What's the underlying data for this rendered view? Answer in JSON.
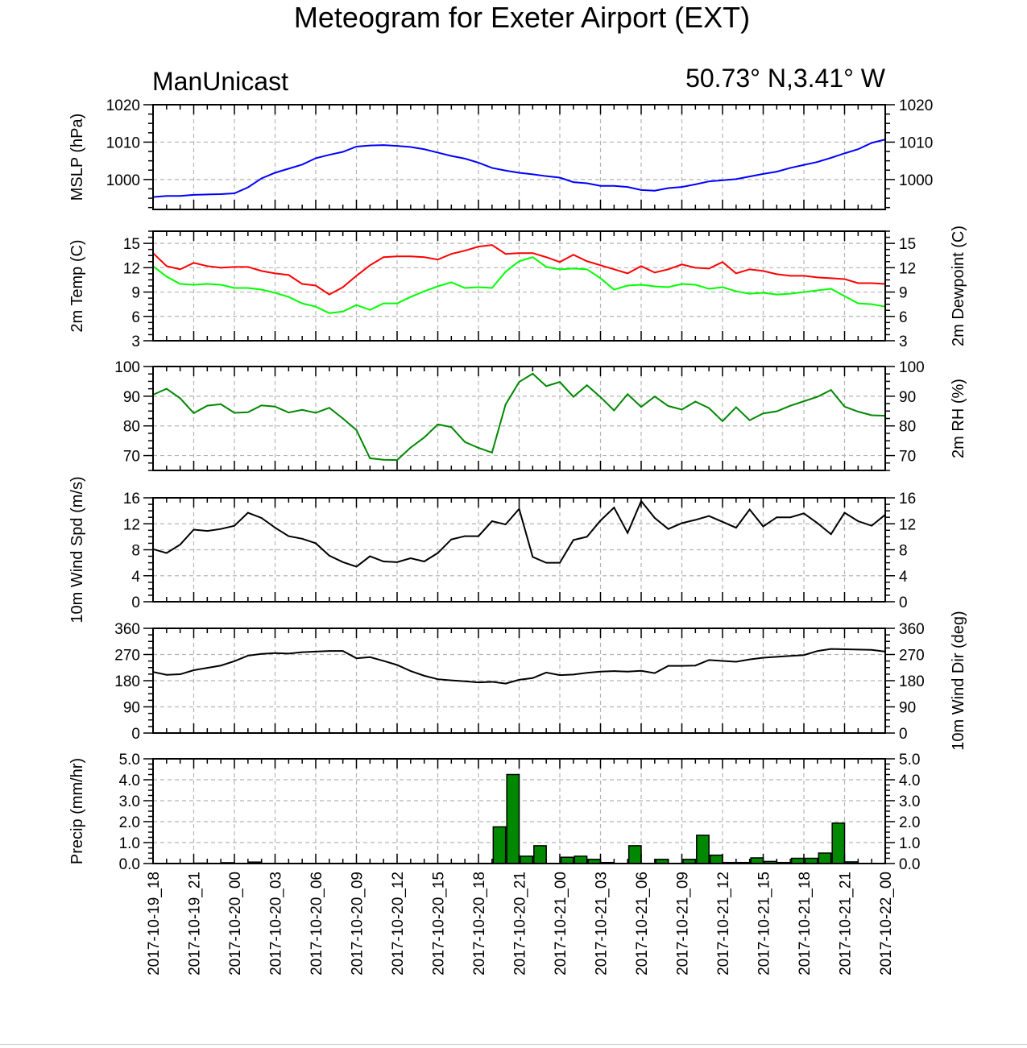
{
  "page": {
    "title": "Meteogram for Exeter Airport (EXT)",
    "subtitle_left": "ManUnicast",
    "subtitle_right": "50.73° N,3.41° W"
  },
  "chart_data": [
    {
      "id": "mslp",
      "type": "line",
      "ylabel_left": "MSLP (hPa)",
      "ylabel_right": "",
      "ylim": [
        992,
        1020
      ],
      "yticks": [
        "1000",
        "1010",
        "1020"
      ],
      "ytick_values": [
        1000,
        1010,
        1020
      ],
      "grid": true,
      "series": [
        {
          "color": "#0000ff",
          "values": [
            995.3,
            995.6,
            995.6,
            995.9,
            996.0,
            996.1,
            996.3,
            997.9,
            1000.3,
            1001.8,
            1002.9,
            1004.0,
            1005.7,
            1006.6,
            1007.4,
            1008.8,
            1009.1,
            1009.2,
            1009.0,
            1008.7,
            1008.1,
            1007.2,
            1006.3,
            1005.6,
            1004.5,
            1003.1,
            1002.4,
            1001.8,
            1001.4,
            1000.9,
            1000.5,
            999.3,
            999.0,
            998.3,
            998.3,
            998.0,
            997.2,
            997.0,
            997.7,
            998.0,
            998.7,
            999.5,
            999.8,
            1000.1,
            1000.8,
            1001.5,
            1002.1,
            1003.1,
            1003.9,
            1004.7,
            1005.8,
            1007.0,
            1008.1,
            1009.8,
            1010.7
          ]
        }
      ]
    },
    {
      "id": "temp-dewpoint",
      "type": "line",
      "ylabel_left": "2m Temp (C)",
      "ylabel_right": "2m Dewpoint (C)",
      "ylim": [
        3,
        16.5
      ],
      "yticks": [
        "3",
        "6",
        "9",
        "12",
        "15"
      ],
      "ytick_values": [
        3,
        6,
        9,
        12,
        15
      ],
      "grid": true,
      "series": [
        {
          "color": "#ff0000",
          "values": [
            13.8,
            12.2,
            11.8,
            12.6,
            12.2,
            12.0,
            12.1,
            12.1,
            11.6,
            11.3,
            11.1,
            10.0,
            9.8,
            8.7,
            9.6,
            11.0,
            12.3,
            13.3,
            13.4,
            13.4,
            13.3,
            13.0,
            13.7,
            14.1,
            14.6,
            14.8,
            13.7,
            13.8,
            13.8,
            13.3,
            12.7,
            13.6,
            12.8,
            12.3,
            11.8,
            11.3,
            12.2,
            11.4,
            11.8,
            12.4,
            12.0,
            11.9,
            12.7,
            11.3,
            11.8,
            11.6,
            11.2,
            11.0,
            11.0,
            10.8,
            10.7,
            10.6,
            10.1,
            10.1,
            10.0
          ]
        },
        {
          "color": "#00ff00",
          "values": [
            12.2,
            10.9,
            10.0,
            9.9,
            10.0,
            9.9,
            9.5,
            9.5,
            9.3,
            8.9,
            8.4,
            7.6,
            7.2,
            6.4,
            6.6,
            7.4,
            6.8,
            7.6,
            7.6,
            8.4,
            9.1,
            9.7,
            10.2,
            9.5,
            9.6,
            9.5,
            11.5,
            12.8,
            13.3,
            12.1,
            11.8,
            11.9,
            11.8,
            10.7,
            9.3,
            9.8,
            9.9,
            9.7,
            9.6,
            10.0,
            9.9,
            9.4,
            9.6,
            9.1,
            8.8,
            8.9,
            8.7,
            8.8,
            9.0,
            9.2,
            9.4,
            8.5,
            7.6,
            7.5,
            7.2
          ]
        }
      ]
    },
    {
      "id": "rh",
      "type": "line",
      "ylabel_left": "",
      "ylabel_right": "2m RH (%)",
      "ylim": [
        65,
        100
      ],
      "yticks": [
        "70",
        "80",
        "90",
        "100"
      ],
      "ytick_values": [
        70,
        80,
        90,
        100
      ],
      "grid": true,
      "series": [
        {
          "color": "#008800",
          "values": [
            90.5,
            92.5,
            89.3,
            84.3,
            86.8,
            87.3,
            84.4,
            84.6,
            86.9,
            86.5,
            84.5,
            85.4,
            84.4,
            86.1,
            82.5,
            78.6,
            69.1,
            68.6,
            68.5,
            72.7,
            76.1,
            80.5,
            79.6,
            74.6,
            72.6,
            71.0,
            87.2,
            94.8,
            97.6,
            93.4,
            94.8,
            89.8,
            93.7,
            89.7,
            85.2,
            90.7,
            86.4,
            89.9,
            86.7,
            85.5,
            88.2,
            86.0,
            81.6,
            86.3,
            81.9,
            84.2,
            84.9,
            86.8,
            88.3,
            89.8,
            92.1,
            86.5,
            84.8,
            83.6,
            83.4
          ]
        }
      ]
    },
    {
      "id": "wind-speed",
      "type": "line",
      "ylabel_left": "10m Wind Spd (m/s)",
      "ylabel_right": "",
      "ylim": [
        0,
        16
      ],
      "yticks": [
        "0",
        "4",
        "8",
        "12",
        "16"
      ],
      "ytick_values": [
        0,
        4,
        8,
        12,
        16
      ],
      "grid": true,
      "series": [
        {
          "color": "#000000",
          "values": [
            8.1,
            7.5,
            8.8,
            11.1,
            10.9,
            11.2,
            11.7,
            13.7,
            12.9,
            11.4,
            10.1,
            9.7,
            9.0,
            7.1,
            6.1,
            5.4,
            7.0,
            6.2,
            6.1,
            6.7,
            6.2,
            7.5,
            9.6,
            10.1,
            10.1,
            12.4,
            11.9,
            14.3,
            6.9,
            6.0,
            6.0,
            9.5,
            10.0,
            12.5,
            14.5,
            10.6,
            15.5,
            12.9,
            11.2,
            12.1,
            12.6,
            13.2,
            12.3,
            11.4,
            14.2,
            11.6,
            13.0,
            13.0,
            13.6,
            12.1,
            10.4,
            13.7,
            12.4,
            11.7,
            13.4
          ]
        }
      ]
    },
    {
      "id": "wind-direction",
      "type": "line",
      "ylabel_left": "",
      "ylabel_right": "10m Wind Dir (deg)",
      "ylim": [
        0,
        360
      ],
      "yticks": [
        "0",
        "90",
        "180",
        "270",
        "360"
      ],
      "ytick_values": [
        0,
        90,
        180,
        270,
        360
      ],
      "grid": true,
      "series": [
        {
          "color": "#000000",
          "values": [
            210,
            200,
            202,
            216,
            224,
            232,
            247,
            266,
            272,
            275,
            273,
            278,
            280,
            282,
            282,
            257,
            261,
            248,
            234,
            213,
            197,
            185,
            181,
            178,
            174,
            176,
            170,
            183,
            189,
            208,
            199,
            201,
            207,
            211,
            213,
            211,
            214,
            206,
            231,
            231,
            232,
            251,
            248,
            245,
            253,
            259,
            262,
            265,
            268,
            282,
            289,
            288,
            287,
            286,
            280
          ]
        }
      ]
    },
    {
      "id": "precip",
      "type": "bar",
      "ylabel_left": "Precip (mm/hr)",
      "ylabel_right": "",
      "ylim": [
        0,
        5
      ],
      "yticks": [
        "0.0",
        "1.0",
        "2.0",
        "3.0",
        "4.0",
        "5.0"
      ],
      "ytick_values": [
        0,
        1,
        2,
        3,
        4,
        5
      ],
      "grid": true,
      "bar_color": "#008800",
      "x_categories_hours": [
        0,
        1,
        2,
        3,
        4,
        5,
        6,
        7,
        8,
        9,
        10,
        11,
        12,
        13,
        14,
        15,
        16,
        17,
        18,
        19,
        20,
        21,
        22,
        23,
        24,
        25,
        26,
        27,
        28,
        29,
        30,
        31,
        32,
        33,
        34,
        35,
        36,
        37,
        38,
        39,
        40,
        41,
        42,
        43,
        44,
        45,
        46,
        47,
        48,
        49,
        50,
        51,
        52,
        53
      ],
      "values": [
        0,
        0,
        0,
        0.02,
        0,
        0.04,
        0,
        0.07,
        0,
        0,
        0,
        0,
        0,
        0,
        0,
        0,
        0,
        0,
        0,
        0,
        0,
        0,
        0,
        0,
        0,
        1.75,
        4.25,
        0.35,
        0.85,
        0,
        0.3,
        0.35,
        0.2,
        0.05,
        0,
        0.85,
        0,
        0.2,
        0,
        0.2,
        1.35,
        0.4,
        0.05,
        0.05,
        0.27,
        0.1,
        0.05,
        0.25,
        0.25,
        0.5,
        1.93,
        0.08,
        0,
        0
      ]
    }
  ],
  "x_axis": {
    "tick_labels": [
      "2017-10-19_18",
      "2017-10-19_21",
      "2017-10-20_00",
      "2017-10-20_03",
      "2017-10-20_06",
      "2017-10-20_09",
      "2017-10-20_12",
      "2017-10-20_15",
      "2017-10-20_18",
      "2017-10-20_21",
      "2017-10-21_00",
      "2017-10-21_03",
      "2017-10-21_06",
      "2017-10-21_09",
      "2017-10-21_12",
      "2017-10-21_15",
      "2017-10-21_18",
      "2017-10-21_21",
      "2017-10-22_00"
    ]
  },
  "colors": {
    "grid": "#b4b4b4",
    "axis": "#000000",
    "bar_outline": "#000000"
  }
}
